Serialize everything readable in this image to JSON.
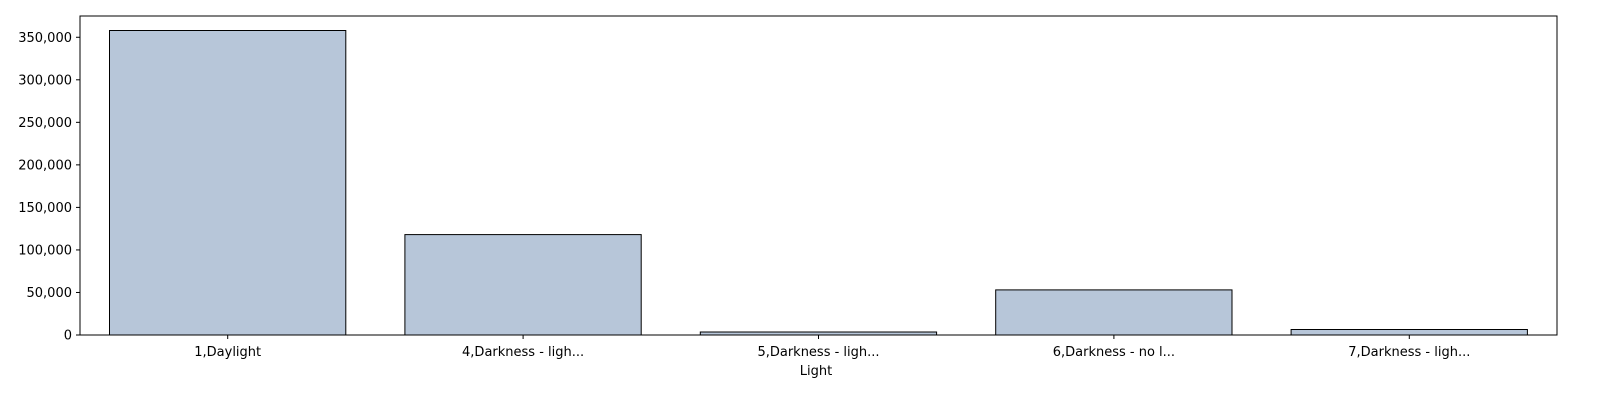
{
  "chart_data": {
    "type": "bar",
    "title": "",
    "xlabel": "Light",
    "ylabel": "",
    "categories": [
      "1,Daylight",
      "4,Darkness - ligh...",
      "5,Darkness - ligh...",
      "6,Darkness - no l...",
      "7,Darkness - ligh..."
    ],
    "values": [
      358000,
      118000,
      3500,
      53000,
      6500
    ],
    "ylim": [
      0,
      375000
    ],
    "yticks": [
      0,
      50000,
      100000,
      150000,
      200000,
      250000,
      300000,
      350000
    ],
    "ytick_labels": [
      "0",
      "50,000",
      "100,000",
      "150,000",
      "200,000",
      "250,000",
      "300,000",
      "350,000"
    ],
    "grid": false,
    "bar_color": "#b7c6d9",
    "bar_edge_color": "#000000"
  }
}
